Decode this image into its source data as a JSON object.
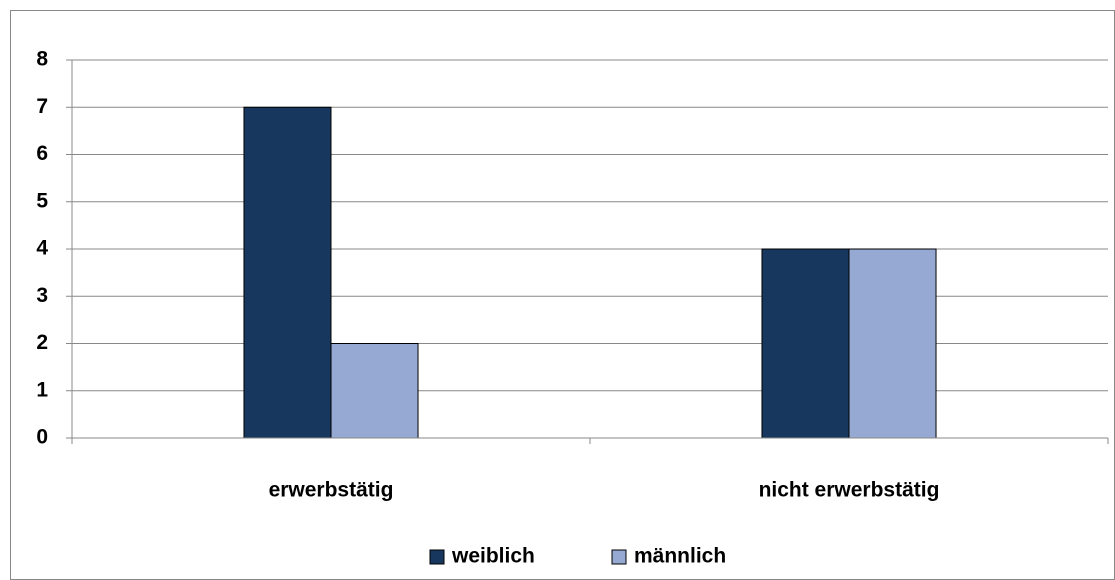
{
  "chart_data": {
    "type": "bar",
    "categories": [
      "erwerbstätig",
      "nicht erwerbstätig"
    ],
    "series": [
      {
        "name": "weiblich",
        "color": "#17375e",
        "values": [
          7,
          4
        ]
      },
      {
        "name": "männlich",
        "color": "#95a9d3",
        "values": [
          2,
          4
        ]
      }
    ],
    "ylim": [
      0,
      8
    ],
    "yticks": [
      0,
      1,
      2,
      3,
      4,
      5,
      6,
      7,
      8
    ],
    "grid": true,
    "legend": "bottom"
  }
}
